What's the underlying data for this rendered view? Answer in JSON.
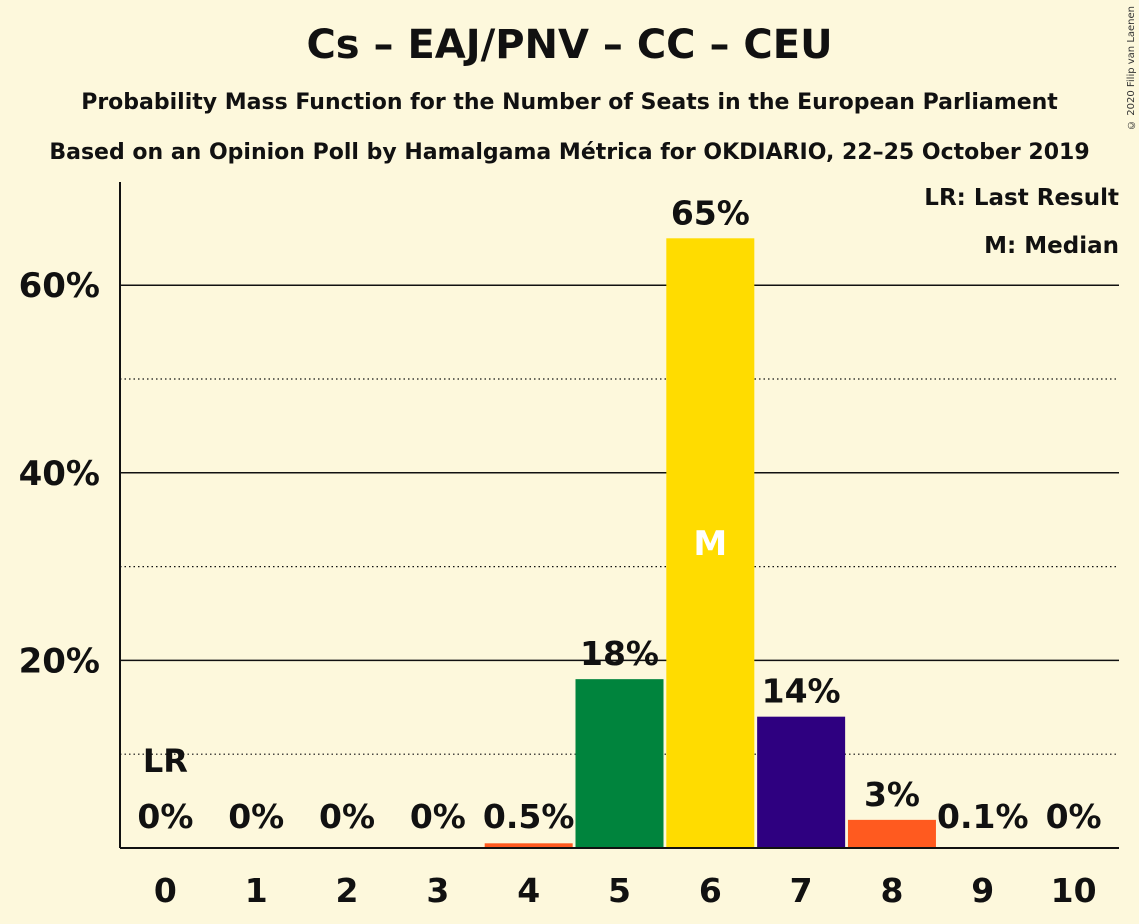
{
  "chart_data": {
    "type": "bar",
    "title": "Cs – EAJ/PNV – CC – CEU",
    "subtitle": "Probability Mass Function for the Number of Seats in the European Parliament",
    "subtitle2": "Based on an Opinion Poll by Hamalgama Métrica for OKDIARIO, 22–25 October 2019",
    "categories": [
      "0",
      "1",
      "2",
      "3",
      "4",
      "5",
      "6",
      "7",
      "8",
      "9",
      "10"
    ],
    "values": [
      0,
      0,
      0,
      0,
      0.5,
      18,
      65,
      14,
      3,
      0.1,
      0
    ],
    "value_labels": [
      "0%",
      "0%",
      "0%",
      "0%",
      "0.5%",
      "18%",
      "65%",
      "14%",
      "3%",
      "0.1%",
      "0%"
    ],
    "bar_colors": [
      "#FF5A1F",
      "#FF5A1F",
      "#FF5A1F",
      "#FF5A1F",
      "#FF5A1F",
      "#00843D",
      "#FFDC00",
      "#2E0080",
      "#FF5A1F",
      "#FF5A1F",
      "#FF5A1F"
    ],
    "yticks": [
      20,
      40,
      60
    ],
    "ytick_labels": [
      "20%",
      "40%",
      "60%"
    ],
    "minor_yticks": [
      10,
      30,
      50
    ],
    "ylim": [
      0,
      70
    ],
    "last_result_index": 0,
    "last_result_marker": "LR",
    "median_index": 6,
    "median_marker": "M",
    "grid": true,
    "legend_position": "top-right"
  },
  "legend": {
    "lr": "LR: Last Result",
    "m": "M: Median"
  },
  "copyright": "© 2020 Filip van Laenen"
}
